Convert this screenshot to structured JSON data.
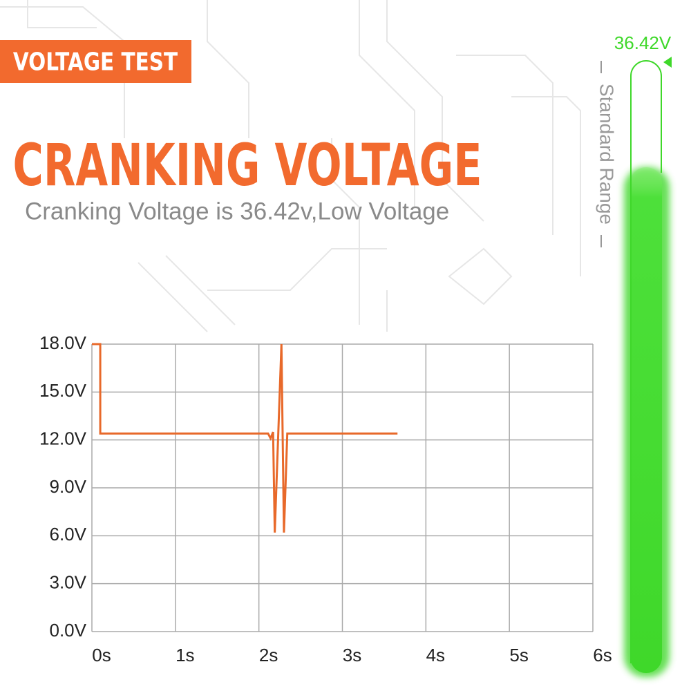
{
  "badge": "VOLTAGE TEST",
  "title": "CRANKING VOLTAGE",
  "subtitle": "Cranking Voltage is 36.42v,Low Voltage",
  "gauge": {
    "label": "36.42V",
    "range_label": "Standard Range"
  },
  "chart_data": {
    "type": "line",
    "x": [
      0,
      0.1,
      0.1,
      2.11,
      2.14,
      2.17,
      2.19,
      2.27,
      2.3,
      2.34,
      3.66
    ],
    "series": [
      {
        "color": "#e8692a",
        "values": [
          18,
          18,
          12.4,
          12.4,
          12.1,
          12.5,
          6.2,
          18,
          6.2,
          12.4,
          12.4
        ]
      }
    ],
    "xlim": [
      0,
      6
    ],
    "xticks": [
      {
        "value": 0,
        "label": "0s"
      },
      {
        "value": 1,
        "label": "1s"
      },
      {
        "value": 2,
        "label": "2s"
      },
      {
        "value": 3,
        "label": "3s"
      },
      {
        "value": 4,
        "label": "4s"
      },
      {
        "value": 5,
        "label": "5s"
      },
      {
        "value": 6,
        "label": "6s"
      }
    ],
    "ylim": [
      0,
      18
    ],
    "yticks": [
      {
        "value": 0,
        "label": "0.0V"
      },
      {
        "value": 3,
        "label": "3.0V"
      },
      {
        "value": 6,
        "label": "6.0V"
      },
      {
        "value": 9,
        "label": "9.0V"
      },
      {
        "value": 12,
        "label": "12.0V"
      },
      {
        "value": 15,
        "label": "15.0V"
      },
      {
        "value": 18,
        "label": "18.0V"
      }
    ],
    "grid": true
  }
}
